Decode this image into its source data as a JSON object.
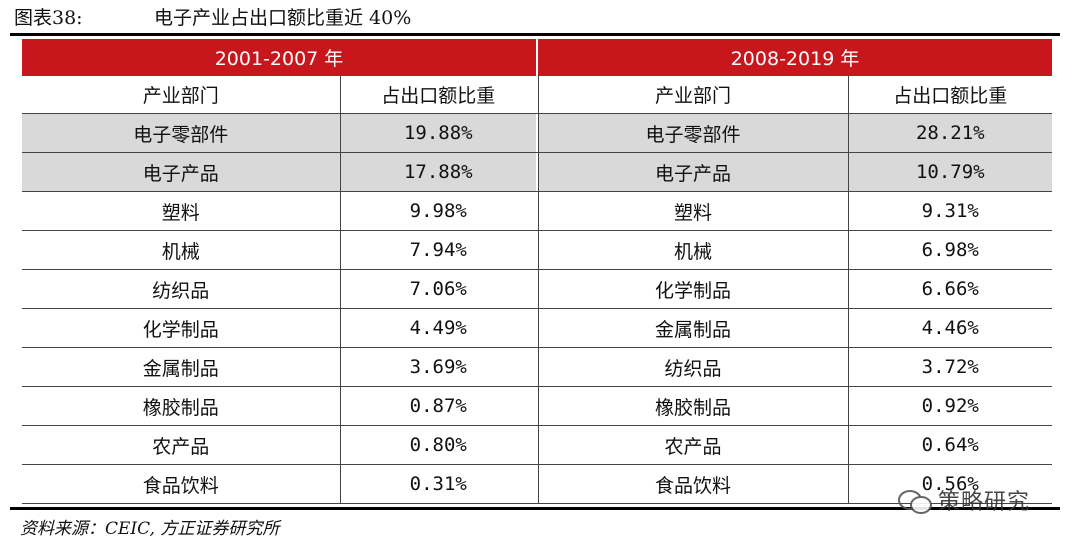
{
  "figure": {
    "label": "图表38:",
    "title": "电子产业占出口额比重近 40%"
  },
  "periods": [
    "2001-2007 年",
    "2008-2019 年"
  ],
  "columns": {
    "sector": "产业部门",
    "share": "占出口额比重"
  },
  "rows": [
    {
      "a_sector": "电子零部件",
      "a_share": "19.88%",
      "b_sector": "电子零部件",
      "b_share": "28.21%",
      "highlight": true
    },
    {
      "a_sector": "电子产品",
      "a_share": "17.88%",
      "b_sector": "电子产品",
      "b_share": "10.79%",
      "highlight": true
    },
    {
      "a_sector": "塑料",
      "a_share": "9.98%",
      "b_sector": "塑料",
      "b_share": "9.31%",
      "highlight": false
    },
    {
      "a_sector": "机械",
      "a_share": "7.94%",
      "b_sector": "机械",
      "b_share": "6.98%",
      "highlight": false
    },
    {
      "a_sector": "纺织品",
      "a_share": "7.06%",
      "b_sector": "化学制品",
      "b_share": "6.66%",
      "highlight": false
    },
    {
      "a_sector": "化学制品",
      "a_share": "4.49%",
      "b_sector": "金属制品",
      "b_share": "4.46%",
      "highlight": false
    },
    {
      "a_sector": "金属制品",
      "a_share": "3.69%",
      "b_sector": "纺织品",
      "b_share": "3.72%",
      "highlight": false
    },
    {
      "a_sector": "橡胶制品",
      "a_share": "0.87%",
      "b_sector": "橡胶制品",
      "b_share": "0.92%",
      "highlight": false
    },
    {
      "a_sector": "农产品",
      "a_share": "0.80%",
      "b_sector": "农产品",
      "b_share": "0.64%",
      "highlight": false
    },
    {
      "a_sector": "食品饮料",
      "a_share": "0.31%",
      "b_sector": "食品饮料",
      "b_share": "0.56%",
      "highlight": false
    }
  ],
  "source": "资料来源：CEIC, 方正证券研究所",
  "watermark": {
    "text": "策略研究",
    "icon": "wechat-icon"
  },
  "colors": {
    "header_red": "#c8161d",
    "highlight_gray": "#d9d9d9"
  }
}
